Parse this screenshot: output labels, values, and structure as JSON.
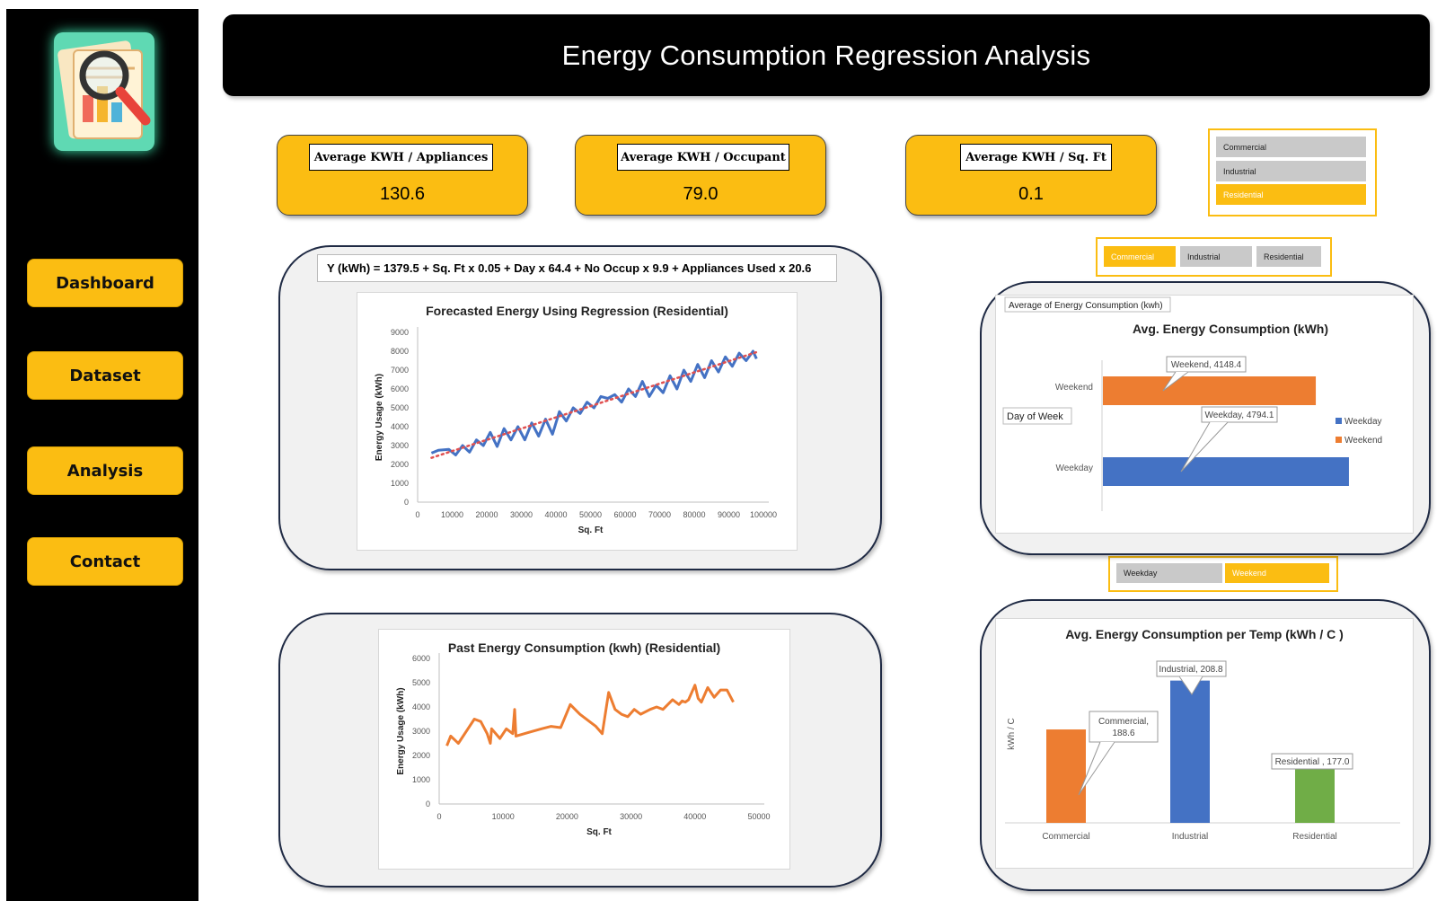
{
  "header": {
    "title": "Energy Consumption Regression Analysis"
  },
  "nav": {
    "dashboard": "Dashboard",
    "dataset": "Dataset",
    "analysis": "Analysis",
    "contact": "Contact"
  },
  "kpis": [
    {
      "label": "Average KWH / Appliances",
      "value": "130.6"
    },
    {
      "label": "Average KWH / Occupant",
      "value": "79.0"
    },
    {
      "label": "Average KWH / Sq. Ft",
      "value": "0.1"
    }
  ],
  "slicer_building": {
    "items": [
      "Commercial",
      "Industrial",
      "Residential"
    ],
    "selected": "Residential"
  },
  "slicer_building_h": {
    "items": [
      "Commercial",
      "Industrial",
      "Residential"
    ],
    "selected": "Commercial"
  },
  "slicer_day": {
    "items": [
      "Weekday",
      "Weekend"
    ],
    "selected": "Weekend"
  },
  "colors": {
    "accent": "#fbbd12",
    "blue": "#4472c4",
    "orange": "#ed7d31",
    "green": "#70ad47",
    "red_dotted": "#e05050"
  },
  "icons": {
    "logo": "report-magnifier-icon"
  },
  "chart_data": [
    {
      "type": "line",
      "title": "Forecasted Energy Using Regression (Residential)",
      "equation": "Y (kWh) = 1379.5 + Sq. Ft x 0.05 + Day x 64.4 + No Occup x 9.9 + Appliances Used x 20.6",
      "xlabel": "Sq. Ft",
      "ylabel": "Energy Usage (kWh)",
      "xlim": [
        0,
        100000
      ],
      "ylim": [
        0,
        9000
      ],
      "xticks": [
        "0",
        "10000",
        "20000",
        "30000",
        "40000",
        "50000",
        "60000",
        "70000",
        "80000",
        "90000",
        "100000"
      ],
      "yticks": [
        "0",
        "1000",
        "2000",
        "3000",
        "4000",
        "5000",
        "6000",
        "7000",
        "8000",
        "9000"
      ],
      "series": [
        {
          "x": [
            4000,
            6000,
            9000,
            11000,
            13000,
            15000,
            17000,
            19000,
            21000,
            23000,
            25000,
            27000,
            29000,
            31000,
            33000,
            35000,
            37000,
            39000,
            41000,
            43000,
            45000,
            47000,
            49000,
            51000,
            53000,
            55000,
            57000,
            59000,
            61000,
            63000,
            65000,
            67000,
            69000,
            71000,
            73000,
            75000,
            77000,
            79000,
            81000,
            83000,
            85000,
            87000,
            89000,
            91000,
            93000,
            95000,
            97000,
            98000
          ],
          "values": [
            2600,
            2750,
            2800,
            2500,
            3000,
            2650,
            3300,
            3000,
            3700,
            2950,
            3900,
            3300,
            4000,
            3300,
            4200,
            3500,
            4400,
            3600,
            4800,
            4300,
            5000,
            4700,
            5300,
            5000,
            5600,
            5500,
            5700,
            5300,
            6000,
            5600,
            6400,
            5600,
            6200,
            5800,
            6700,
            6000,
            7000,
            6400,
            7300,
            6600,
            7500,
            6900,
            7700,
            7200,
            7900,
            7500,
            8000,
            7600
          ],
          "style": "solid",
          "color": "#4472c4"
        },
        {
          "x": [
            4000,
            98000
          ],
          "values": [
            2350,
            7950
          ],
          "style": "dotted",
          "color": "#e05050"
        }
      ]
    },
    {
      "type": "line",
      "title": "Past Energy Consumption (kwh) (Residential)",
      "xlabel": "Sq. Ft",
      "ylabel": "Energy Usage (kWh)",
      "xlim": [
        0,
        50000
      ],
      "ylim": [
        0,
        6000
      ],
      "xticks": [
        "0",
        "10000",
        "20000",
        "30000",
        "40000",
        "50000"
      ],
      "yticks": [
        "0",
        "1000",
        "2000",
        "3000",
        "4000",
        "5000",
        "6000"
      ],
      "series": [
        {
          "x": [
            1200,
            1800,
            3000,
            4500,
            5500,
            6500,
            7500,
            8000,
            8200,
            9500,
            10500,
            11500,
            11800,
            12000,
            14000,
            16000,
            17500,
            19000,
            20500,
            22000,
            23500,
            24500,
            25500,
            26500,
            27500,
            28500,
            29500,
            30500,
            31500,
            33000,
            34000,
            35000,
            36500,
            37500,
            38000,
            38500,
            39000,
            40000,
            40500,
            41000,
            42000,
            43000,
            44000,
            45000,
            46000
          ],
          "values": [
            2400,
            2800,
            2500,
            3100,
            3500,
            3400,
            2900,
            2500,
            3100,
            2700,
            3100,
            2900,
            3900,
            2800,
            2950,
            3100,
            3200,
            3150,
            4100,
            3700,
            3400,
            3200,
            2900,
            4600,
            3900,
            3700,
            3600,
            3900,
            3700,
            3900,
            4000,
            3900,
            4300,
            4100,
            4250,
            4200,
            4300,
            4900,
            4350,
            4200,
            4800,
            4400,
            4700,
            4700,
            4200
          ],
          "style": "solid",
          "color": "#ed7d31"
        }
      ]
    },
    {
      "type": "bar",
      "orientation": "horizontal",
      "title": "Avg. Energy Consumption (kWh)",
      "field_button": "Average of Energy Consumption (kwh)",
      "axis_button": "Day of Week",
      "categories": [
        "Weekend",
        "Weekday"
      ],
      "series": [
        {
          "name": "Weekday",
          "values": [
            null,
            4794.1
          ],
          "color": "#4472c4"
        },
        {
          "name": "Weekend",
          "values": [
            4148.4,
            null
          ],
          "color": "#ed7d31"
        }
      ],
      "data_labels": [
        "Weekend, 4148.4",
        "Weekday, 4794.1"
      ],
      "legend": "right"
    },
    {
      "type": "bar",
      "title": "Avg. Energy Consumption per Temp (kWh / C )",
      "ylabel": "kWh / C",
      "categories": [
        "Commercial",
        "Industrial",
        "Residential"
      ],
      "values": [
        188.6,
        208.8,
        177.0
      ],
      "colors": [
        "#ed7d31",
        "#4472c4",
        "#70ad47"
      ],
      "data_labels": [
        "Commercial, 188.6",
        "Industrial, 208.8",
        "Residential , 177.0"
      ]
    }
  ]
}
